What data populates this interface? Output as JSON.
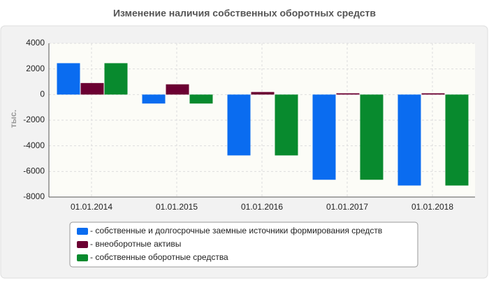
{
  "chart_data": {
    "type": "bar",
    "title": "Изменение наличия собственных оборотных средств",
    "y_label": "тыс.",
    "categories": [
      "01.01.2014",
      "01.01.2015",
      "01.01.2016",
      "01.01.2017",
      "01.01.2018"
    ],
    "series": [
      {
        "name": "- собственные и долгосрочные заемные источники формирования средств",
        "color": "#0a6cf0",
        "values": [
          2450,
          -700,
          -4750,
          -6650,
          -7100
        ]
      },
      {
        "name": "- внеоборотные активы",
        "color": "#6b0032",
        "values": [
          900,
          800,
          200,
          100,
          100
        ]
      },
      {
        "name": "- собственные оборотные средства",
        "color": "#088a2e",
        "values": [
          2450,
          -700,
          -4750,
          -6650,
          -7100
        ]
      }
    ],
    "ylim": [
      -8000,
      4000
    ],
    "yticks": [
      -8000,
      -6000,
      -4000,
      -2000,
      0,
      2000,
      4000
    ],
    "grid": true
  }
}
